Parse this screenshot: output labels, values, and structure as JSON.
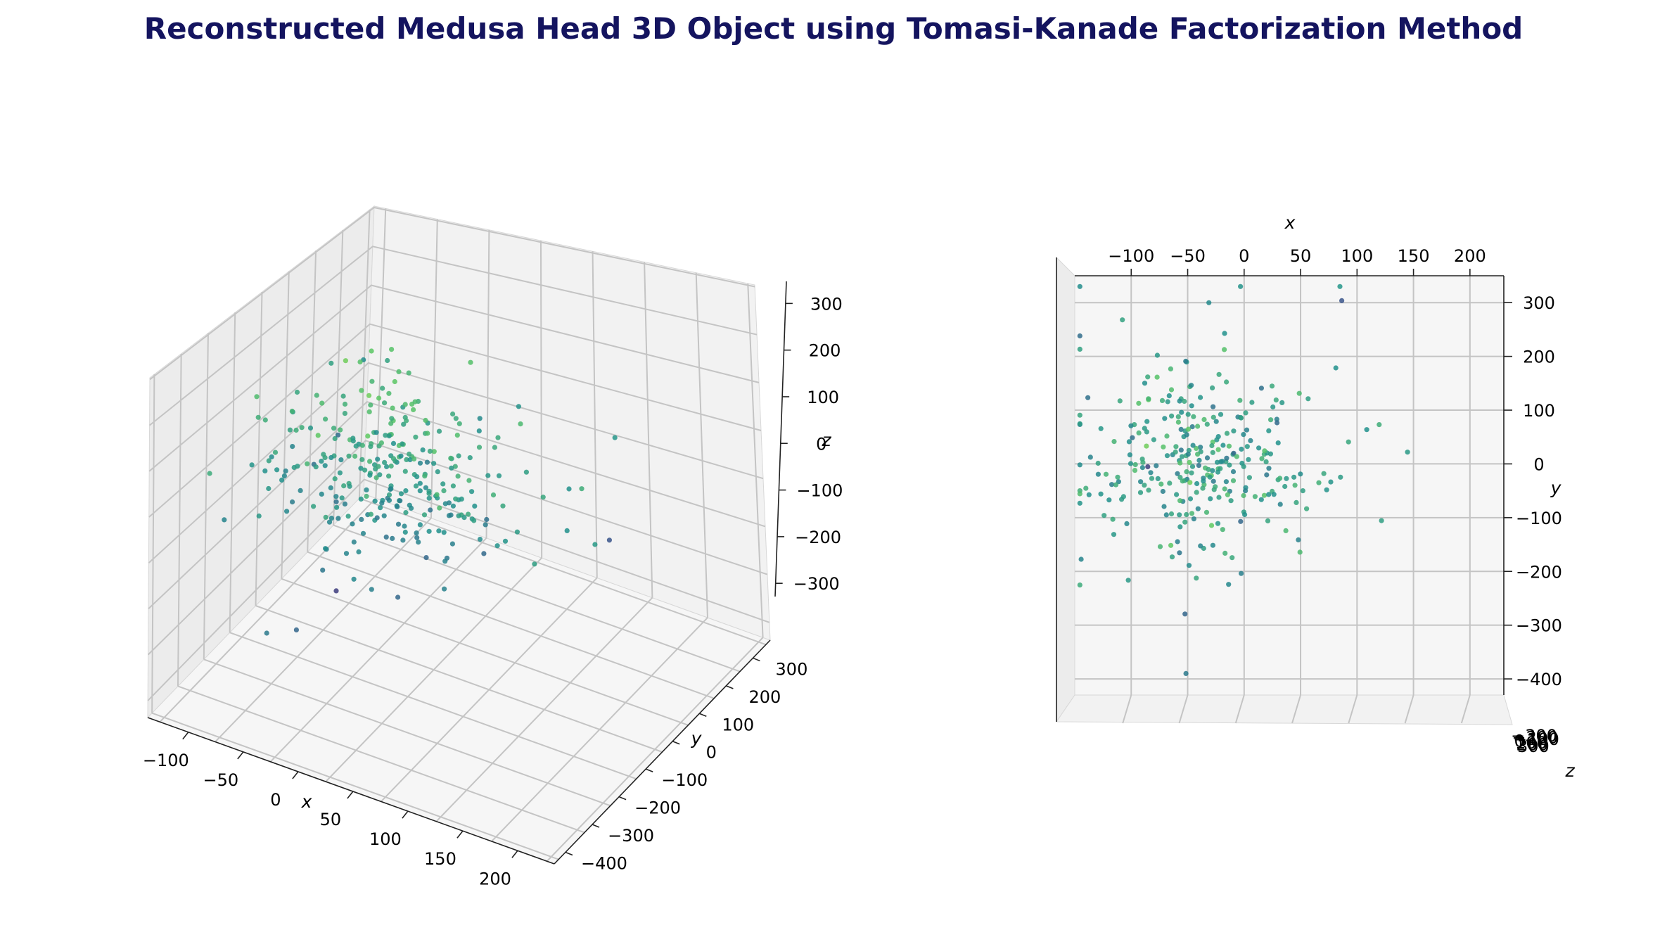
{
  "title": "Reconstructed Medusa Head 3D Object using Tomasi-Kanade Factorization Method",
  "colors": {
    "title": "#14145f",
    "pane_a": "#f2f2f2",
    "pane_b": "#f6f6f6",
    "pane_c": "#ececec",
    "colormap": [
      "#440154",
      "#3b528b",
      "#21918c",
      "#5ec962",
      "#fde725"
    ]
  },
  "chart_data": [
    {
      "type": "scatter3d",
      "view": "perspective",
      "xlabel": "x",
      "ylabel": "y",
      "zlabel": "z",
      "xticks": [
        "−100",
        "−50",
        "0",
        "50",
        "100",
        "150",
        "200"
      ],
      "yticks": [
        "300",
        "200",
        "100",
        "0",
        "−100",
        "−200",
        "−300",
        "−400"
      ],
      "zticks": [
        "300",
        "200",
        "100",
        "0",
        "−100",
        "−200",
        "−300"
      ],
      "xlim": [
        -150,
        230
      ],
      "ylim": [
        -430,
        350
      ],
      "zlim": [
        -360,
        360
      ],
      "grid": true,
      "color_by": "z"
    },
    {
      "type": "scatter3d",
      "view": "top-down (x-y plane)",
      "xlabel": "x",
      "ylabel": "y",
      "zlabel": "z",
      "xticks": [
        "−100",
        "−50",
        "0",
        "50",
        "100",
        "150",
        "200"
      ],
      "yticks": [
        "300",
        "200",
        "100",
        "0",
        "−100",
        "−200",
        "−300",
        "−400"
      ],
      "zticks": [
        "−300",
        "−200",
        "−100",
        "0",
        "100",
        "200",
        "300"
      ],
      "xlim": [
        -150,
        230
      ],
      "ylim": [
        -430,
        350
      ],
      "grid": true,
      "color_by": "z"
    }
  ]
}
